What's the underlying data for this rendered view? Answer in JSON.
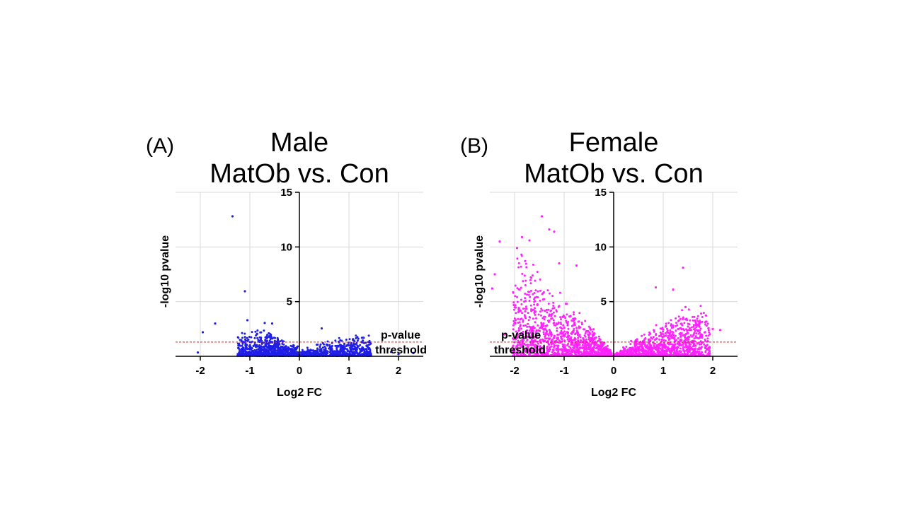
{
  "chart_data": [
    {
      "type": "scatter",
      "panel_label": "(A)",
      "title_lines": [
        "Male",
        "MatOb vs. Con"
      ],
      "xlabel": "Log2 FC",
      "ylabel": "-log10 pvalue",
      "xlim": [
        -2.5,
        2.5
      ],
      "ylim": [
        0,
        15
      ],
      "xticks": [
        -2,
        -1,
        0,
        1,
        2
      ],
      "yticks": [
        5,
        10,
        15
      ],
      "grid": true,
      "point_color": "#1f1fe6",
      "threshold": {
        "value": 1.3,
        "color": "#e01b1b",
        "label_lines": [
          "p-value",
          "threshold"
        ]
      },
      "highlight_points": [
        [
          -1.35,
          12.8
        ],
        [
          -1.1,
          5.95
        ],
        [
          -1.95,
          2.2
        ],
        [
          -1.7,
          3.0
        ],
        [
          -1.05,
          3.3
        ],
        [
          -0.7,
          3.05
        ],
        [
          -0.55,
          3.0
        ],
        [
          0.45,
          2.55
        ],
        [
          2.3,
          0.3
        ],
        [
          2.0,
          0.2
        ],
        [
          -2.05,
          0.35
        ],
        [
          1.85,
          0.4
        ]
      ],
      "clusters": [
        {
          "x_range": [
            -1.25,
            -0.02
          ],
          "y_max": 2.6,
          "n": 750
        },
        {
          "x_range": [
            0.02,
            1.45
          ],
          "y_max": 1.9,
          "n": 650
        }
      ]
    },
    {
      "type": "scatter",
      "panel_label": "(B)",
      "title_lines": [
        "Female",
        "MatOb vs. Con"
      ],
      "xlabel": "Log2 FC",
      "ylabel": "-log10 pvalue",
      "xlim": [
        -2.5,
        2.5
      ],
      "ylim": [
        0,
        15
      ],
      "xticks": [
        -2,
        -1,
        0,
        1,
        2
      ],
      "yticks": [
        5,
        10,
        15
      ],
      "grid": true,
      "point_color": "#ff22ff",
      "threshold": {
        "value": 1.3,
        "color": "#e01b1b",
        "label_lines": [
          "p-value",
          "threshold"
        ]
      },
      "highlight_points": [
        [
          -1.45,
          12.8
        ],
        [
          -1.3,
          11.6
        ],
        [
          -1.2,
          11.4
        ],
        [
          -1.85,
          10.9
        ],
        [
          -2.3,
          10.5
        ],
        [
          -1.7,
          10.6
        ],
        [
          -1.95,
          9.9
        ],
        [
          -1.1,
          8.5
        ],
        [
          -0.75,
          8.3
        ],
        [
          -2.4,
          7.5
        ],
        [
          1.4,
          8.1
        ],
        [
          0.85,
          6.3
        ],
        [
          1.2,
          6.1
        ],
        [
          -2.45,
          6.2
        ],
        [
          1.45,
          4.5
        ],
        [
          2.0,
          2.5
        ],
        [
          2.15,
          2.4
        ],
        [
          -2.2,
          2.0
        ]
      ],
      "clusters": [
        {
          "x_range": [
            -2.05,
            -0.02
          ],
          "y_max": 9.5,
          "n": 1300,
          "shape": "volcano"
        },
        {
          "x_range": [
            0.02,
            1.95
          ],
          "y_max": 5.5,
          "n": 1100,
          "shape": "volcano"
        }
      ]
    }
  ]
}
